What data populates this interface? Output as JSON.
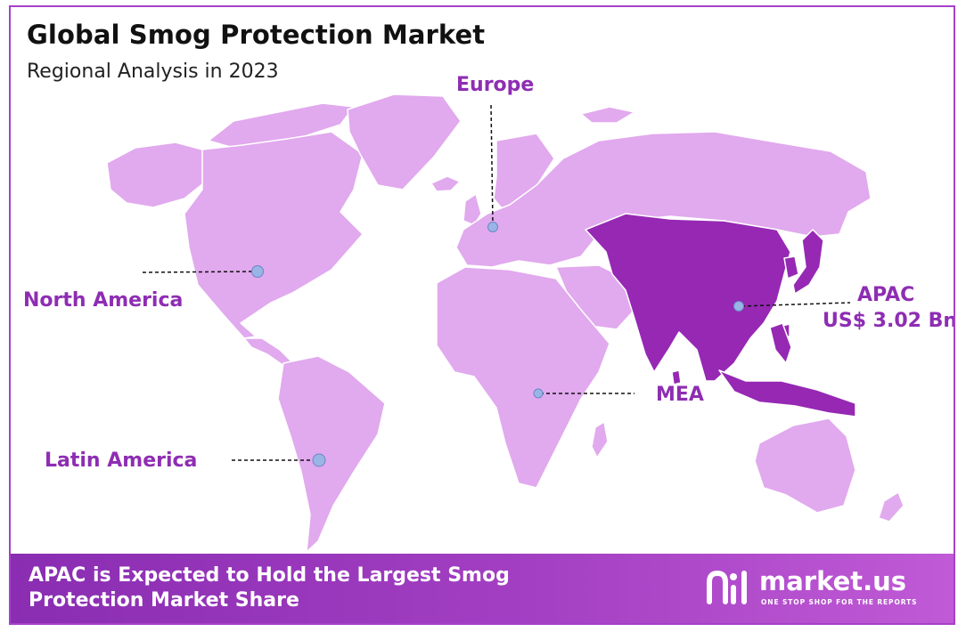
{
  "header": {
    "title": "Global Smog Protection Market",
    "subtitle": "Regional Analysis in 2023"
  },
  "regions": {
    "europe": "Europe",
    "north_america": "North America",
    "apac_name": "APAC",
    "apac_value": "US$ 3.02 Bn",
    "mea": "MEA",
    "latin_america": "Latin America"
  },
  "footer": {
    "line1": "APAC is Expected to Hold the Largest Smog",
    "line2": "Protection Market Share"
  },
  "brand": {
    "name": "market.us",
    "tagline": "ONE STOP SHOP FOR THE REPORTS"
  },
  "colors": {
    "land": "#e1a9ee",
    "highlight": "#9628b4",
    "accent": "#8e2db3",
    "marker": "#9ab4e6",
    "border": "#a640c8"
  }
}
